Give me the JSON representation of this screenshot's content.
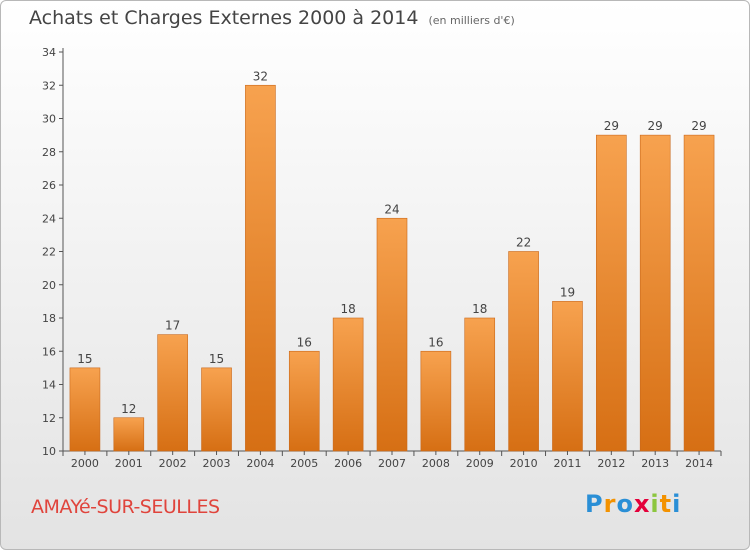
{
  "title": "Achats et Charges Externes 2000 à 2014",
  "subtitle": "(en milliers d'€)",
  "commune": "AMAYé-SUR-SEULLES",
  "logo": {
    "letters": [
      "P",
      "r",
      "o",
      "x",
      "i",
      "t",
      "i"
    ],
    "colors": [
      "#2a8fd6",
      "#f39200",
      "#2a8fd6",
      "#e4003a",
      "#8cc63f",
      "#f39200",
      "#2a8fd6"
    ]
  },
  "colors": {
    "bar": "#f08a2a",
    "bar_light": "#f7a24f",
    "bar_dark": "#d66f14",
    "commune": "#e0443c"
  },
  "chart_data": {
    "type": "bar",
    "categories": [
      "2000",
      "2001",
      "2002",
      "2003",
      "2004",
      "2005",
      "2006",
      "2007",
      "2008",
      "2009",
      "2010",
      "2011",
      "2012",
      "2013",
      "2014"
    ],
    "values": [
      15,
      12,
      17,
      15,
      32,
      16,
      18,
      24,
      16,
      18,
      22,
      19,
      29,
      29,
      29
    ],
    "ylim": [
      10,
      34
    ],
    "yticks": [
      10,
      12,
      14,
      16,
      18,
      20,
      22,
      24,
      26,
      28,
      30,
      32,
      34
    ],
    "grid": false
  }
}
